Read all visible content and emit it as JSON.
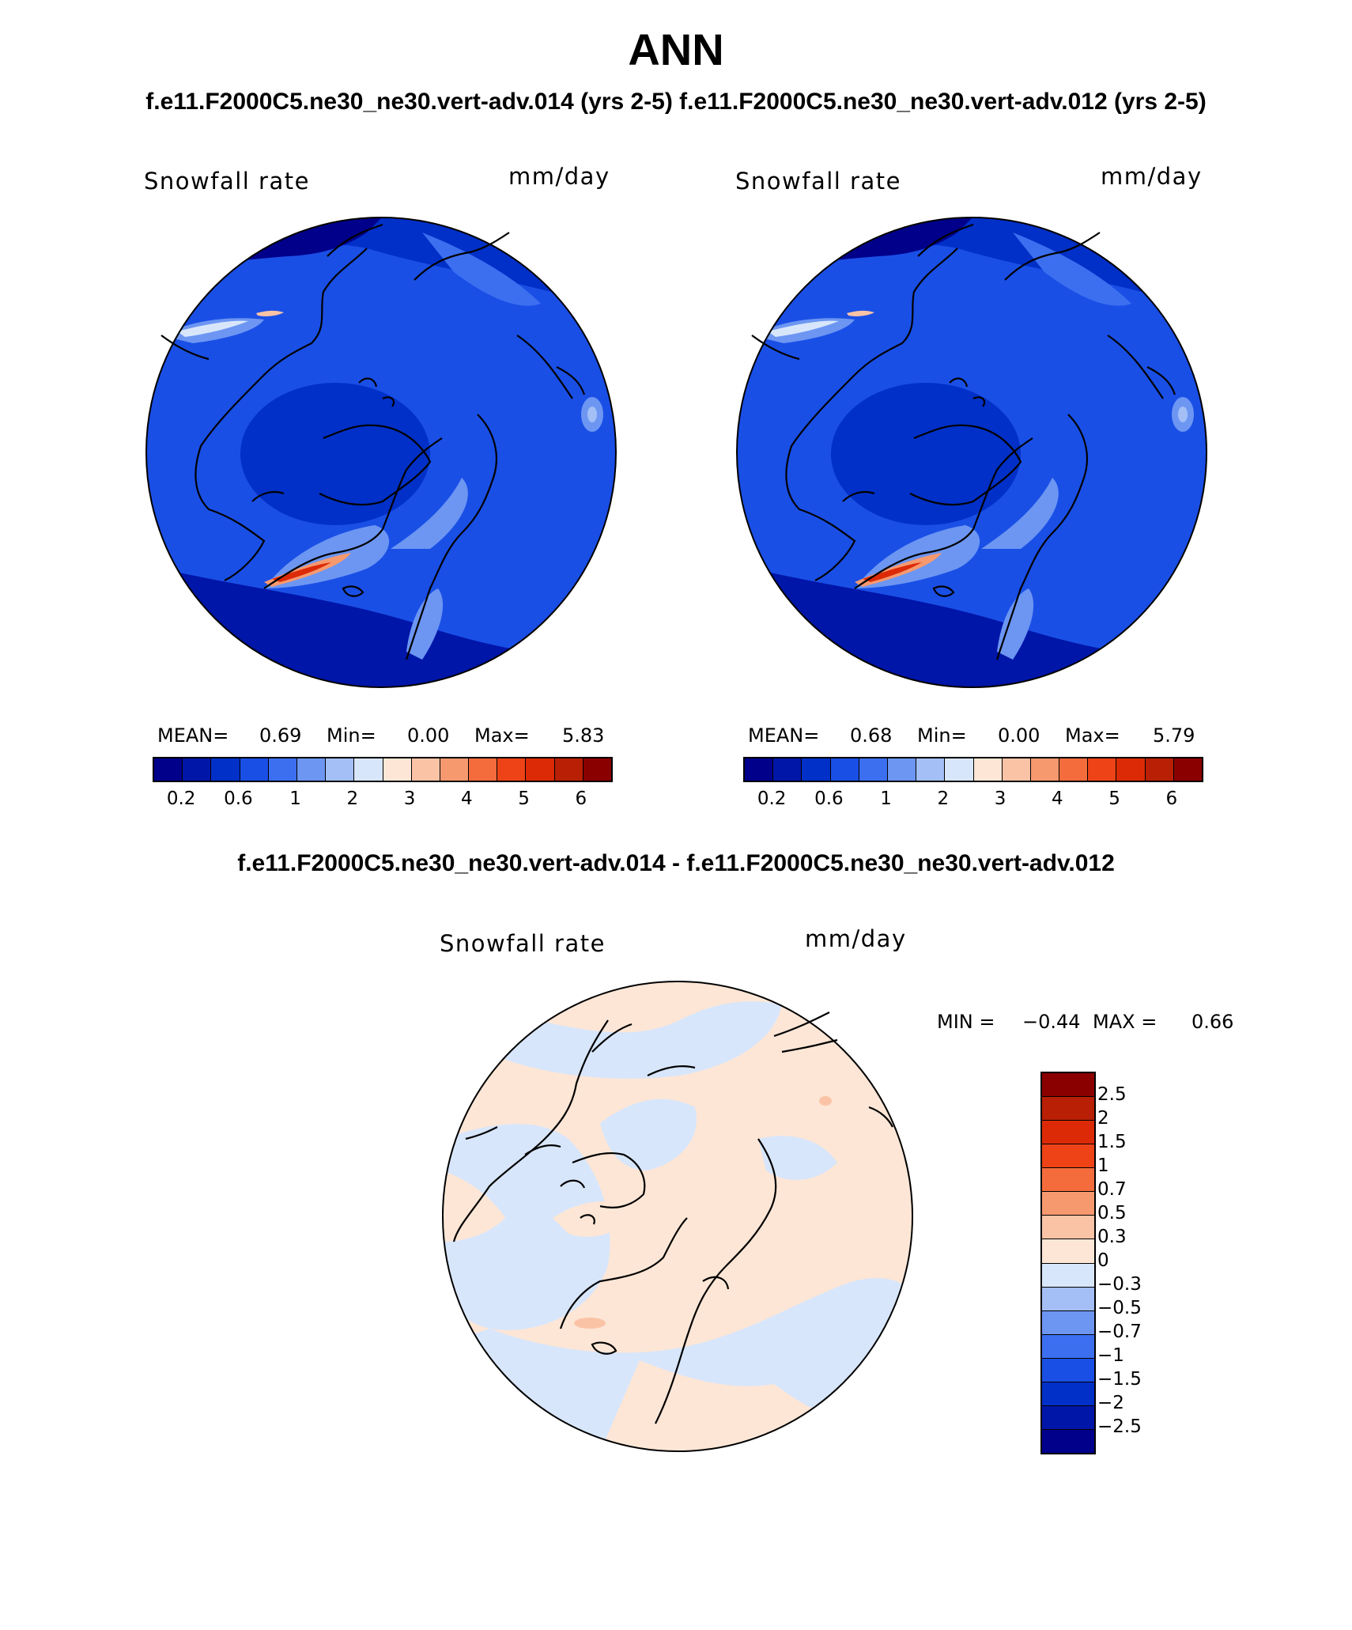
{
  "title": "ANN",
  "subtitles": {
    "top_left": "f.e11.F2000C5.ne30_ne30.vert-adv.014 (yrs 2-5)",
    "top_right": "f.e11.F2000C5.ne30_ne30.vert-adv.012 (yrs 2-5)",
    "difference": "f.e11.F2000C5.ne30_ne30.vert-adv.014 - f.e11.F2000C5.ne30_ne30.vert-adv.012"
  },
  "panels": {
    "left": {
      "variable": "Snowfall rate",
      "units": "mm/day",
      "stats": {
        "mean_label": "MEAN=",
        "mean": "0.69",
        "min_label": "Min=",
        "min": "0.00",
        "max_label": "Max=",
        "max": "5.83"
      }
    },
    "right": {
      "variable": "Snowfall rate",
      "units": "mm/day",
      "stats": {
        "mean_label": "MEAN=",
        "mean": "0.68",
        "min_label": "Min=",
        "min": "0.00",
        "max_label": "Max=",
        "max": "5.79"
      }
    },
    "diff": {
      "variable": "Snowfall rate",
      "units": "mm/day",
      "stats": {
        "min_label": "MIN =",
        "min": "−0.44",
        "max_label": "MAX =",
        "max": "0.66"
      }
    }
  },
  "colorbar_main": {
    "colors": [
      "#00008b",
      "#0016a8",
      "#0030c8",
      "#1a4fe6",
      "#3c6ff0",
      "#6c96f2",
      "#a3bff6",
      "#d8e6fb",
      "#fde6d6",
      "#fbc3a6",
      "#f7996f",
      "#f56c3c",
      "#ee4317",
      "#dc2a06",
      "#b81f04",
      "#8a0000"
    ],
    "tick_labels": [
      "0.2",
      "0.6",
      "1",
      "2",
      "3",
      "4",
      "5",
      "6"
    ]
  },
  "colorbar_diff": {
    "colors_top_to_bottom": [
      "#8a0000",
      "#b81f04",
      "#dc2a06",
      "#ee4317",
      "#f56c3c",
      "#f7996f",
      "#fbc3a6",
      "#fde6d6",
      "#d8e6fb",
      "#a3bff6",
      "#6c96f2",
      "#3c6ff0",
      "#1a4fe6",
      "#0030c8",
      "#0016a8",
      "#00008b"
    ],
    "tick_labels_top_to_bottom": [
      "2.5",
      "2",
      "1.5",
      "1",
      "0.7",
      "0.5",
      "0.3",
      "0",
      "−0.3",
      "−0.5",
      "−0.7",
      "−1",
      "−1.5",
      "−2",
      "−2.5"
    ]
  }
}
